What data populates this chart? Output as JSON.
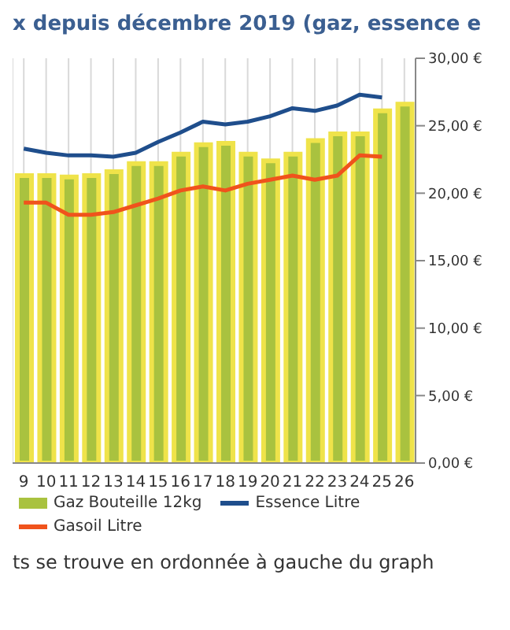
{
  "chart_data": {
    "type": "bar",
    "title": "x depuis décembre 2019 (gaz, essence e",
    "categories": [
      "9",
      "10",
      "11",
      "12",
      "13",
      "14",
      "15",
      "16",
      "17",
      "18",
      "19",
      "20",
      "21",
      "22",
      "23",
      "24",
      "25",
      "26"
    ],
    "series": [
      {
        "name": "Gaz Bouteille 12kg",
        "color": "#a9c23f",
        "values": [
          21.3,
          21.3,
          21.2,
          21.3,
          21.6,
          22.2,
          22.2,
          22.9,
          23.6,
          23.7,
          22.9,
          22.4,
          22.9,
          23.9,
          24.4,
          24.4,
          26.1,
          26.6
        ]
      },
      {
        "name": "Essence Litre",
        "type": "line",
        "color": "#1f4e8c",
        "values": [
          23.3,
          23.0,
          22.8,
          22.8,
          22.7,
          23.0,
          23.8,
          24.5,
          25.3,
          25.1,
          25.3,
          25.7,
          26.3,
          26.1,
          26.5,
          27.3,
          27.1,
          null
        ]
      },
      {
        "name": "Gasoil Litre",
        "type": "line",
        "color": "#f0531c",
        "values": [
          19.3,
          19.3,
          18.4,
          18.4,
          18.6,
          19.1,
          19.6,
          20.2,
          20.5,
          20.2,
          20.7,
          21.0,
          21.3,
          21.0,
          21.3,
          22.8,
          22.7,
          null
        ]
      }
    ],
    "ylim": [
      0,
      30
    ],
    "yticks": [
      {
        "value": 0,
        "label": "0,00 €"
      },
      {
        "value": 5,
        "label": "5,00 €"
      },
      {
        "value": 10,
        "label": "10,00 €"
      },
      {
        "value": 15,
        "label": "15,00 €"
      },
      {
        "value": 20,
        "label": "20,00 €"
      },
      {
        "value": 25,
        "label": "25,00 €"
      },
      {
        "value": 30,
        "label": "30,00 €"
      }
    ],
    "grid": "x",
    "legend": "bottom left",
    "marker": "none",
    "line_style": "solid",
    "annotations": [
      "ts se trouve en ordonnée à gauche du graph"
    ]
  }
}
